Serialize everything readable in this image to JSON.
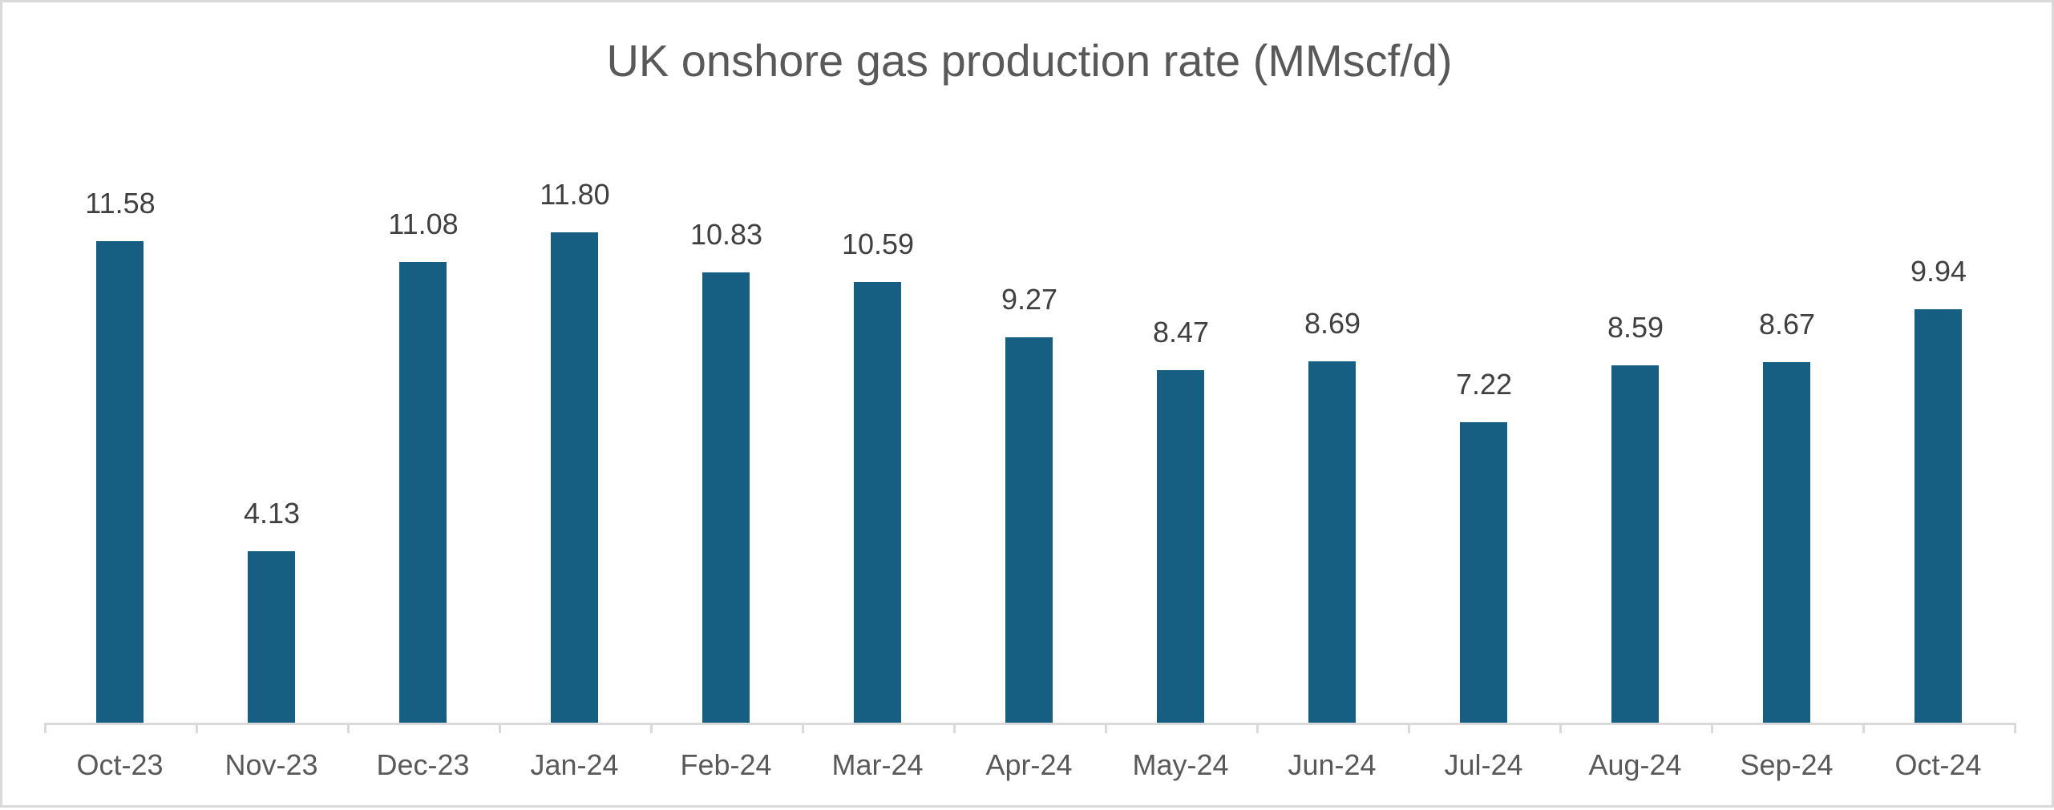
{
  "chart_data": {
    "type": "bar",
    "title": "UK onshore gas production rate (MMscf/d)",
    "xlabel": "",
    "ylabel": "",
    "categories": [
      "Oct-23",
      "Nov-23",
      "Dec-23",
      "Jan-24",
      "Feb-24",
      "Mar-24",
      "Apr-24",
      "May-24",
      "Jun-24",
      "Jul-24",
      "Aug-24",
      "Sep-24",
      "Oct-24"
    ],
    "values": [
      11.58,
      4.13,
      11.08,
      11.8,
      10.83,
      10.59,
      9.27,
      8.47,
      8.69,
      7.22,
      8.59,
      8.67,
      9.94
    ],
    "value_labels": [
      "11.58",
      "4.13",
      "11.08",
      "11.80",
      "10.83",
      "10.59",
      "9.27",
      "8.47",
      "8.69",
      "7.22",
      "8.59",
      "8.67",
      "9.94"
    ],
    "ylim": [
      0,
      14
    ],
    "y_axis_visible": false,
    "grid": false,
    "legend": "none",
    "data_labels": "outside_end",
    "colors": {
      "bar": "#175f82",
      "title": "#595959",
      "data_label": "#404040",
      "category_label": "#595959",
      "axis": "#d9d9d9"
    }
  }
}
